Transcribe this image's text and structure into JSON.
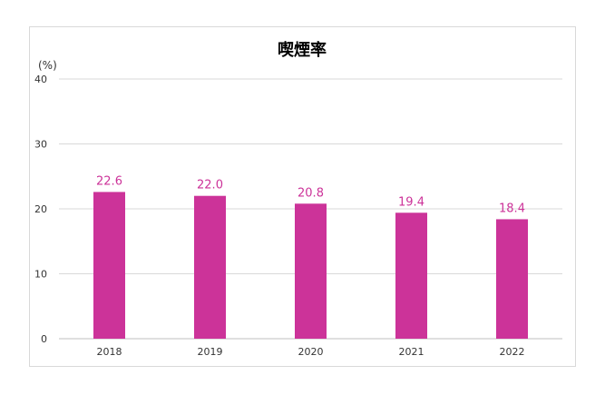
{
  "chart_data": {
    "type": "bar",
    "title": "喫煙率",
    "unit": "(%)",
    "categories": [
      "2018",
      "2019",
      "2020",
      "2021",
      "2022"
    ],
    "values": [
      22.6,
      22.0,
      20.8,
      19.4,
      18.4
    ],
    "value_labels": [
      "22.6",
      "22.0",
      "20.8",
      "19.4",
      "18.4"
    ],
    "ylim": [
      0,
      40
    ],
    "yticks": [
      0,
      10,
      20,
      30,
      40
    ],
    "ytick_labels": [
      "0",
      "10",
      "20",
      "30",
      "40"
    ],
    "grid": true,
    "bar_color": "#cc3399"
  }
}
